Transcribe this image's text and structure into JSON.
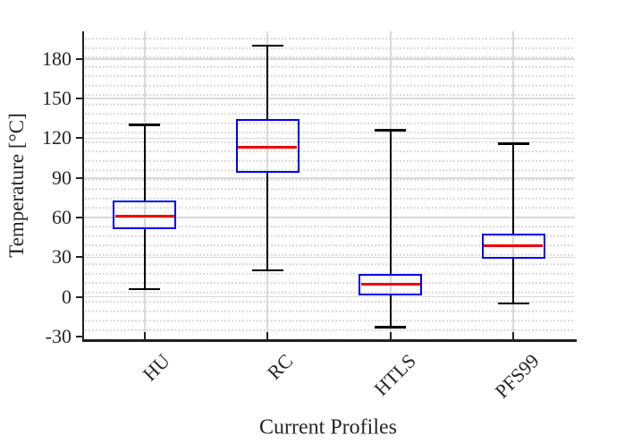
{
  "chart_data": {
    "type": "boxplot",
    "title": "",
    "xlabel": "Current Profiles",
    "ylabel": "Temperature [°C]",
    "ylim": [
      -30,
      200
    ],
    "yticks": [
      -30,
      0,
      30,
      60,
      90,
      120,
      150,
      180
    ],
    "grid": {
      "major": "solid",
      "minor": "dotted",
      "legend": "none"
    },
    "categories": [
      "HU",
      "RC",
      "HTLS",
      "PFS99"
    ],
    "series": [
      {
        "name": "HU",
        "whisker_low": 6,
        "q1": 51,
        "median": 61,
        "q3": 73,
        "whisker_high": 130
      },
      {
        "name": "RC",
        "whisker_low": 20,
        "q1": 94,
        "median": 113,
        "q3": 134.5,
        "whisker_high": 190
      },
      {
        "name": "HTLS",
        "whisker_low": -23,
        "q1": 1,
        "median": 9.5,
        "q3": 17.5,
        "whisker_high": 126
      },
      {
        "name": "PFS99",
        "whisker_low": -5,
        "q1": 29,
        "median": 39,
        "q3": 48,
        "whisker_high": 116
      }
    ],
    "colors": {
      "box_edge": "#0000f0",
      "median": "#f00000",
      "whisker": "#000000",
      "major_grid": "#d9d9d9",
      "axis": "#212121",
      "background": "#ffffff"
    }
  }
}
